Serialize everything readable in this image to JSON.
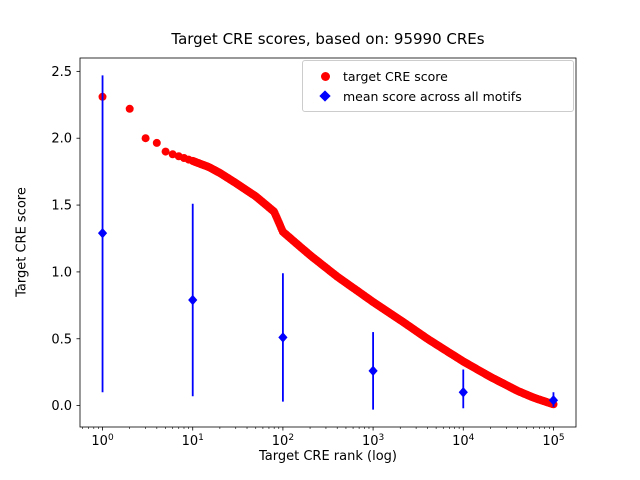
{
  "chart_data": {
    "type": "scatter",
    "title": "Target CRE scores, based on: 95990 CREs",
    "xlabel": "Target CRE rank (log)",
    "ylabel": "Target CRE score",
    "xscale": "log",
    "grid": false,
    "xlim_log10": [
      -0.25,
      5.25
    ],
    "ylim": [
      -0.16,
      2.6
    ],
    "x_ticks_log10": [
      0,
      1,
      2,
      3,
      4,
      5
    ],
    "y_ticks": [
      0.0,
      0.5,
      1.0,
      1.5,
      2.0,
      2.5
    ],
    "legend": {
      "position": "upper right"
    },
    "series": [
      {
        "name": "target CRE score",
        "marker": "circle",
        "color": "#ff0000",
        "anchors_log10rank_score": [
          [
            0.0,
            2.31
          ],
          [
            0.301,
            2.22
          ],
          [
            0.477,
            2.0
          ],
          [
            0.602,
            1.965
          ],
          [
            0.699,
            1.9
          ],
          [
            0.778,
            1.88
          ],
          [
            0.845,
            1.865
          ],
          [
            0.954,
            1.84
          ],
          [
            1.0,
            1.83
          ],
          [
            1.176,
            1.785
          ],
          [
            1.301,
            1.74
          ],
          [
            1.477,
            1.665
          ],
          [
            1.699,
            1.565
          ],
          [
            1.903,
            1.45
          ],
          [
            2.0,
            1.3
          ],
          [
            2.301,
            1.125
          ],
          [
            2.602,
            0.965
          ],
          [
            3.0,
            0.775
          ],
          [
            3.301,
            0.64
          ],
          [
            3.602,
            0.5
          ],
          [
            4.0,
            0.33
          ],
          [
            4.301,
            0.215
          ],
          [
            4.602,
            0.11
          ],
          [
            4.778,
            0.06
          ],
          [
            5.0,
            0.01
          ]
        ]
      },
      {
        "name": "mean score across all motifs",
        "marker": "diamond",
        "color": "#0000ff",
        "x": [
          1,
          10,
          100,
          1000,
          10000,
          100000
        ],
        "mean": [
          1.29,
          0.79,
          0.51,
          0.26,
          0.1,
          0.04
        ],
        "err_low": [
          0.1,
          0.07,
          0.03,
          -0.03,
          -0.02,
          -0.01
        ],
        "err_high": [
          2.47,
          1.51,
          0.99,
          0.55,
          0.27,
          0.1
        ]
      }
    ]
  }
}
